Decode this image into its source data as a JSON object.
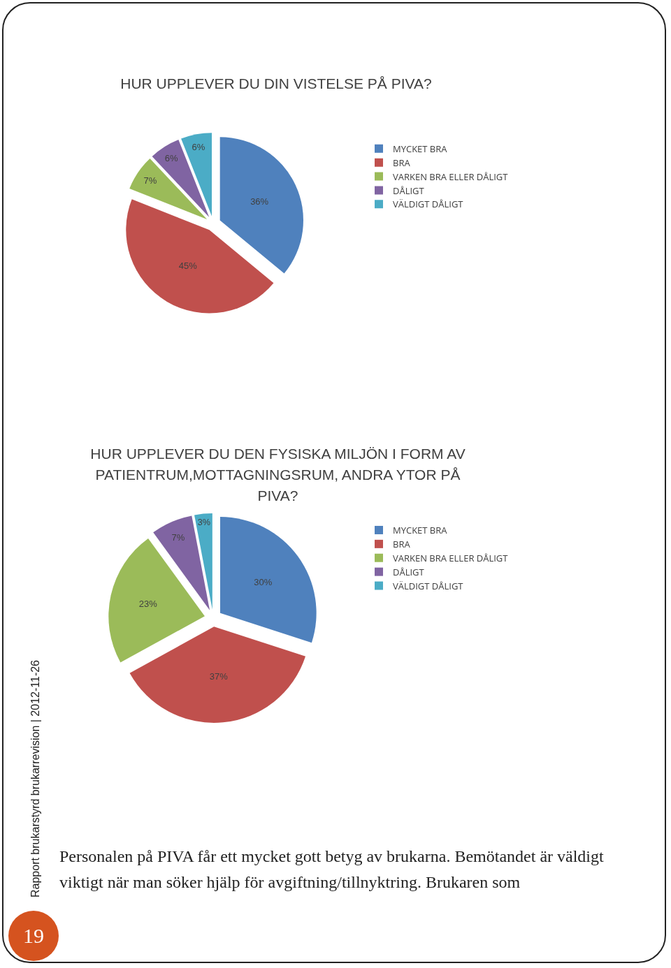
{
  "chart_data": [
    {
      "type": "pie",
      "title": "HUR UPPLEVER DU DIN VISTELSE PÅ PIVA?",
      "categories": [
        "MYCKET BRA",
        "BRA",
        "VARKEN BRA ELLER DÅLIGT",
        "DÅLIGT",
        "VÄLDIGT DÅLIGT"
      ],
      "values": [
        36,
        45,
        7,
        6,
        6
      ],
      "value_labels": [
        "36%",
        "45%",
        "7%",
        "6%",
        "6%"
      ],
      "colors": [
        "#4f81bd",
        "#c0504d",
        "#9bbb59",
        "#8064a2",
        "#4bacc6"
      ],
      "legend": "right"
    },
    {
      "type": "pie",
      "title": "HUR UPPLEVER DU DEN FYSISKA MILJÖN I FORM AV PATIENTRUM,MOTTAGNINGSRUM,  ANDRA YTOR PÅ PIVA?",
      "categories": [
        "MYCKET BRA",
        "BRA",
        "VARKEN BRA ELLER DÅLIGT",
        "DÅLIGT",
        "VÄLDIGT DÅLIGT"
      ],
      "values": [
        30,
        37,
        23,
        7,
        3
      ],
      "value_labels": [
        "30%",
        "37%",
        "23%",
        "7%",
        "3%"
      ],
      "colors": [
        "#4f81bd",
        "#c0504d",
        "#9bbb59",
        "#8064a2",
        "#4bacc6"
      ],
      "legend": "right",
      "annotations": [
        "Personalen på PIVA får ett mycket gott betyg av brukarna. Bemötandet är väldigt viktigt när man söker hjälp för avgiftning/tillnyktring. Brukaren som",
        "Rapport brukarstyrd brukarrevision  |  2012-11-26",
        "19"
      ]
    }
  ]
}
